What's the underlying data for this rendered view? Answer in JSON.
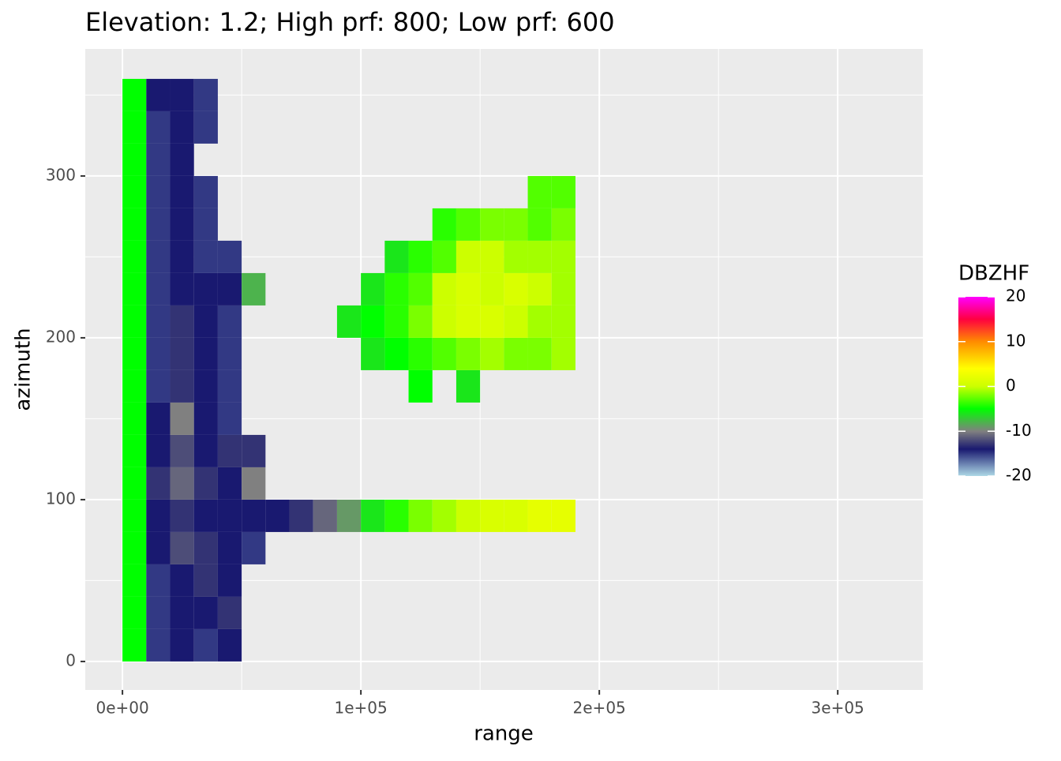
{
  "chart_data": {
    "type": "heatmap",
    "title": "Elevation: 1.2; High prf: 800; Low prf: 600",
    "x_label": "range",
    "y_label": "azimuth",
    "xbins": [
      0,
      10000,
      20000,
      30000,
      40000,
      50000,
      60000,
      70000,
      80000,
      90000,
      100000,
      110000,
      120000,
      130000,
      140000,
      150000,
      160000,
      170000,
      180000,
      190000
    ],
    "ybins": [
      0,
      20,
      40,
      60,
      80,
      100,
      120,
      140,
      160,
      180,
      200,
      220,
      240,
      260,
      280,
      300,
      320,
      340,
      360
    ],
    "values": [
      [
        -5,
        -15,
        -14,
        -15,
        -14,
        null,
        null,
        null,
        null,
        null,
        null,
        null,
        null,
        null,
        null,
        null,
        null,
        null,
        null
      ],
      [
        -5,
        -15,
        -14,
        -14,
        -13,
        null,
        null,
        null,
        null,
        null,
        null,
        null,
        null,
        null,
        null,
        null,
        null,
        null,
        null
      ],
      [
        -5,
        -15,
        -14,
        -13,
        -14,
        null,
        null,
        null,
        null,
        null,
        null,
        null,
        null,
        null,
        null,
        null,
        null,
        null,
        null
      ],
      [
        -5,
        -14,
        -12,
        -13,
        -14,
        -15,
        null,
        null,
        null,
        null,
        null,
        null,
        null,
        null,
        null,
        null,
        null,
        null,
        null
      ],
      [
        -5,
        -14,
        -13,
        -14,
        -14,
        -14,
        -14,
        -13,
        -11,
        -9,
        -6,
        -4,
        -2,
        -1,
        0,
        1,
        1,
        2,
        2
      ],
      [
        -5,
        -13,
        -11,
        -13,
        -14,
        -10,
        null,
        null,
        null,
        null,
        null,
        null,
        null,
        null,
        null,
        null,
        null,
        null,
        null
      ],
      [
        -5,
        -14,
        -12,
        -14,
        -13,
        -13,
        null,
        null,
        null,
        null,
        null,
        null,
        null,
        null,
        null,
        null,
        null,
        null,
        null
      ],
      [
        -5,
        -14,
        -10,
        -14,
        -15,
        null,
        null,
        null,
        null,
        null,
        null,
        null,
        null,
        null,
        null,
        null,
        null,
        null,
        null
      ],
      [
        -5,
        -15,
        -13,
        -14,
        -15,
        null,
        null,
        null,
        null,
        null,
        null,
        null,
        -5,
        null,
        -6,
        null,
        null,
        null,
        null
      ],
      [
        -5,
        -15,
        -13,
        -14,
        -15,
        null,
        null,
        null,
        null,
        null,
        -6,
        -5,
        -4,
        -3,
        -2,
        -1,
        -2,
        -2,
        -1
      ],
      [
        -5,
        -15,
        -13,
        -14,
        -15,
        null,
        null,
        null,
        null,
        -6,
        -5,
        -4,
        -2,
        0,
        1,
        1,
        0,
        -1,
        -1
      ],
      [
        -5,
        -15,
        -14,
        -14,
        -14,
        -8,
        null,
        null,
        null,
        null,
        -6,
        -4,
        -3,
        0,
        1,
        0,
        1,
        0,
        -1
      ],
      [
        -5,
        -15,
        -14,
        -15,
        -15,
        null,
        null,
        null,
        null,
        null,
        null,
        -6,
        -4,
        -3,
        0,
        0,
        -1,
        -1,
        -1
      ],
      [
        -5,
        -15,
        -14,
        -15,
        null,
        null,
        null,
        null,
        null,
        null,
        null,
        null,
        null,
        -4,
        -3,
        -2,
        -2,
        -3,
        -2
      ],
      [
        -5,
        -15,
        -14,
        -15,
        null,
        null,
        null,
        null,
        null,
        null,
        null,
        null,
        null,
        null,
        null,
        null,
        null,
        -3,
        -3
      ],
      [
        -5,
        -15,
        -14,
        null,
        null,
        null,
        null,
        null,
        null,
        null,
        null,
        null,
        null,
        null,
        null,
        null,
        null,
        null,
        null
      ],
      [
        -5,
        -15,
        -14,
        -15,
        null,
        null,
        null,
        null,
        null,
        null,
        null,
        null,
        null,
        null,
        null,
        null,
        null,
        null,
        null
      ],
      [
        -5,
        -14,
        -14,
        -15,
        null,
        null,
        null,
        null,
        null,
        null,
        null,
        null,
        null,
        null,
        null,
        null,
        null,
        null,
        null
      ]
    ],
    "xlim": [
      -15600,
      335700
    ],
    "xticks": [
      {
        "value": 0,
        "label": "0e+00"
      },
      {
        "value": 100000,
        "label": "1e+05"
      },
      {
        "value": 200000,
        "label": "2e+05"
      },
      {
        "value": 300000,
        "label": "3e+05"
      }
    ],
    "xminor": [
      50000,
      150000,
      250000
    ],
    "ylim": [
      -17.6,
      378.5
    ],
    "yticks": [
      0,
      100,
      200,
      300
    ],
    "yminor": [
      50,
      150,
      250,
      350
    ],
    "grid": true,
    "legend": {
      "title": "DBZHF",
      "ticks": [
        20,
        10,
        0,
        -10,
        -20
      ],
      "lim": [
        -20,
        20
      ],
      "position": "right"
    },
    "colorscale": [
      {
        "value": -20,
        "color": "#add8e6"
      },
      {
        "value": -14,
        "color": "#191970"
      },
      {
        "value": -10,
        "color": "#808080"
      },
      {
        "value": -5,
        "color": "#00ff00"
      },
      {
        "value": 0,
        "color": "#ccff00"
      },
      {
        "value": 4,
        "color": "#ffff00"
      },
      {
        "value": 10,
        "color": "#ff8c00"
      },
      {
        "value": 15,
        "color": "#ff0040"
      },
      {
        "value": 20,
        "color": "#ff00ff"
      }
    ]
  }
}
